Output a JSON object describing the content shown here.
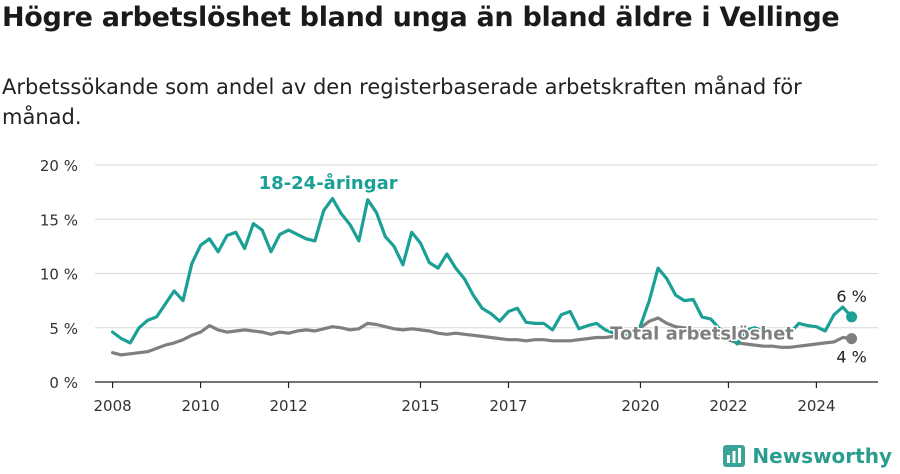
{
  "title": "Högre arbetslöshet bland unga än bland äldre i Vellinge",
  "subtitle": "Arbetssökande som andel av den registerbaserade arbetskraften månad för månad.",
  "brand": {
    "name": "Newsworthy",
    "logo_icon": "bar-chart-logo-icon",
    "color": "#3aa597"
  },
  "chart_data": {
    "type": "line",
    "title": "Högre arbetslöshet bland unga än bland äldre i Vellinge",
    "subtitle": "Arbetssökande som andel av den registerbaserade arbetskraften månad för månad.",
    "xlabel": "",
    "ylabel": "",
    "ylim": [
      0,
      20
    ],
    "xlim": [
      2007.6,
      2025.4
    ],
    "y_ticks": [
      0,
      5,
      10,
      15,
      20
    ],
    "y_tick_labels": [
      "0 %",
      "5 %",
      "10 %",
      "15 %",
      "20 %"
    ],
    "x_ticks": [
      2008,
      2010,
      2012,
      2015,
      2017,
      2020,
      2022,
      2024
    ],
    "x_tick_labels": [
      "2008",
      "2010",
      "2012",
      "2015",
      "2017",
      "2020",
      "2022",
      "2024"
    ],
    "grid": true,
    "series": [
      {
        "name": "18-24-åringar",
        "color": "#1aa095",
        "end_label": "6 %",
        "x": [
          2008.0,
          2008.2,
          2008.4,
          2008.6,
          2008.8,
          2009.0,
          2009.2,
          2009.4,
          2009.6,
          2009.8,
          2010.0,
          2010.2,
          2010.4,
          2010.6,
          2010.8,
          2011.0,
          2011.2,
          2011.4,
          2011.6,
          2011.8,
          2012.0,
          2012.2,
          2012.4,
          2012.6,
          2012.8,
          2013.0,
          2013.2,
          2013.4,
          2013.6,
          2013.8,
          2014.0,
          2014.2,
          2014.4,
          2014.6,
          2014.8,
          2015.0,
          2015.2,
          2015.4,
          2015.6,
          2015.8,
          2016.0,
          2016.2,
          2016.4,
          2016.6,
          2016.8,
          2017.0,
          2017.2,
          2017.4,
          2017.6,
          2017.8,
          2018.0,
          2018.2,
          2018.4,
          2018.6,
          2018.8,
          2019.0,
          2019.2,
          2019.4,
          2019.6,
          2019.8,
          2020.0,
          2020.2,
          2020.4,
          2020.6,
          2020.8,
          2021.0,
          2021.2,
          2021.4,
          2021.6,
          2021.8,
          2022.0,
          2022.2,
          2022.4,
          2022.6,
          2022.8,
          2023.0,
          2023.2,
          2023.4,
          2023.6,
          2023.8,
          2024.0,
          2024.2,
          2024.4,
          2024.6,
          2024.8
        ],
        "values": [
          4.6,
          4.0,
          3.6,
          5.0,
          5.7,
          6.0,
          7.2,
          8.4,
          7.5,
          10.9,
          12.6,
          13.2,
          12.0,
          13.5,
          13.8,
          12.3,
          14.6,
          14.0,
          12.0,
          13.6,
          14.0,
          13.6,
          13.2,
          13.0,
          15.8,
          16.9,
          15.5,
          14.5,
          13.0,
          16.8,
          15.6,
          13.4,
          12.5,
          10.8,
          13.8,
          12.8,
          11.0,
          10.5,
          11.8,
          10.5,
          9.5,
          8.0,
          6.8,
          6.3,
          5.6,
          6.5,
          6.8,
          5.5,
          5.4,
          5.4,
          4.8,
          6.2,
          6.5,
          4.9,
          5.2,
          5.4,
          4.8,
          4.5,
          4.4,
          4.3,
          5.2,
          7.5,
          10.5,
          9.5,
          8.0,
          7.5,
          7.6,
          6.0,
          5.8,
          4.9,
          4.5,
          3.5,
          4.8,
          5.0,
          4.7,
          4.6,
          4.3,
          4.5,
          5.4,
          5.2,
          5.1,
          4.7,
          6.2,
          6.9,
          6.0
        ]
      },
      {
        "name": "Total arbetslöshet",
        "color": "#7f7f7f",
        "end_label": "4 %",
        "x": [
          2008.0,
          2008.2,
          2008.4,
          2008.6,
          2008.8,
          2009.0,
          2009.2,
          2009.4,
          2009.6,
          2009.8,
          2010.0,
          2010.2,
          2010.4,
          2010.6,
          2010.8,
          2011.0,
          2011.2,
          2011.4,
          2011.6,
          2011.8,
          2012.0,
          2012.2,
          2012.4,
          2012.6,
          2012.8,
          2013.0,
          2013.2,
          2013.4,
          2013.6,
          2013.8,
          2014.0,
          2014.2,
          2014.4,
          2014.6,
          2014.8,
          2015.0,
          2015.2,
          2015.4,
          2015.6,
          2015.8,
          2016.0,
          2016.2,
          2016.4,
          2016.6,
          2016.8,
          2017.0,
          2017.2,
          2017.4,
          2017.6,
          2017.8,
          2018.0,
          2018.2,
          2018.4,
          2018.6,
          2018.8,
          2019.0,
          2019.2,
          2019.4,
          2019.6,
          2019.8,
          2020.0,
          2020.2,
          2020.4,
          2020.6,
          2020.8,
          2021.0,
          2021.2,
          2021.4,
          2021.6,
          2021.8,
          2022.0,
          2022.2,
          2022.4,
          2022.6,
          2022.8,
          2023.0,
          2023.2,
          2023.4,
          2023.6,
          2023.8,
          2024.0,
          2024.2,
          2024.4,
          2024.6,
          2024.8
        ],
        "values": [
          2.7,
          2.5,
          2.6,
          2.7,
          2.8,
          3.1,
          3.4,
          3.6,
          3.9,
          4.3,
          4.6,
          5.2,
          4.8,
          4.6,
          4.7,
          4.8,
          4.7,
          4.6,
          4.4,
          4.6,
          4.5,
          4.7,
          4.8,
          4.7,
          4.9,
          5.1,
          5.0,
          4.8,
          4.9,
          5.4,
          5.3,
          5.1,
          4.9,
          4.8,
          4.9,
          4.8,
          4.7,
          4.5,
          4.4,
          4.5,
          4.4,
          4.3,
          4.2,
          4.1,
          4.0,
          3.9,
          3.9,
          3.8,
          3.9,
          3.9,
          3.8,
          3.8,
          3.8,
          3.9,
          4.0,
          4.1,
          4.1,
          4.2,
          4.3,
          4.7,
          5.0,
          5.6,
          5.9,
          5.4,
          5.1,
          5.0,
          4.8,
          4.6,
          4.5,
          4.2,
          3.9,
          3.6,
          3.5,
          3.4,
          3.3,
          3.3,
          3.2,
          3.2,
          3.3,
          3.4,
          3.5,
          3.6,
          3.7,
          4.1,
          4.0
        ]
      }
    ],
    "annotations": [
      {
        "series": "18-24-åringar",
        "text": "18-24-åringar",
        "x": 2012.9,
        "y": 17.8
      },
      {
        "series": "Total arbetslöshet",
        "text": "Total arbetslöshet",
        "x": 2021.4,
        "y": 3.9
      }
    ]
  }
}
